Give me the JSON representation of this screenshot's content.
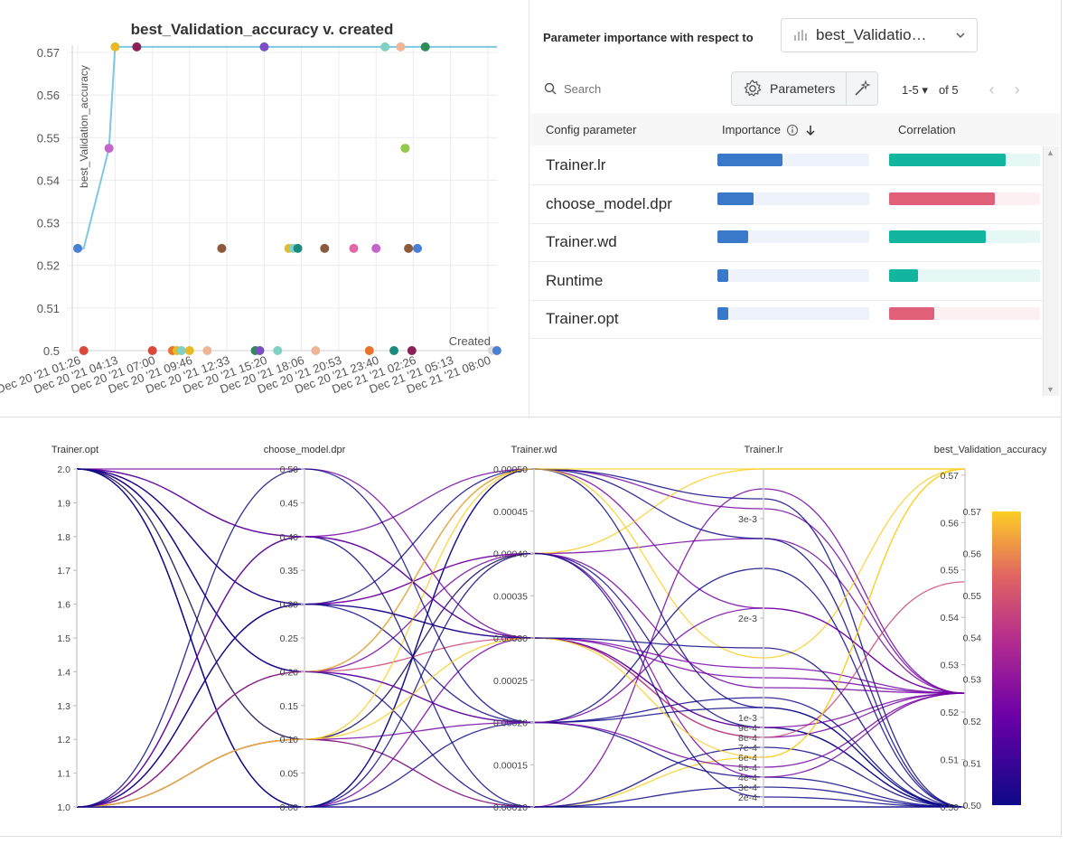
{
  "scatter": {
    "title": "best_Validation_accuracy v. created",
    "ylabel": "best_Validation_accuracy",
    "xlabel": "Created",
    "y_ticks": [
      "0.57",
      "0.56",
      "0.55",
      "0.54",
      "0.53",
      "0.52",
      "0.51",
      "0.5"
    ],
    "x_ticks": [
      "Dec 20 '21 01:26",
      "Dec 20 '21 04:13",
      "Dec 20 '21 07:00",
      "Dec 20 '21 09:46",
      "Dec 20 '21 12:33",
      "Dec 20 '21 15:20",
      "Dec 20 '21 18:06",
      "Dec 20 '21 20:53",
      "Dec 20 '21 23:40",
      "Dec 21 '21 02:26",
      "Dec 21 '21 05:13",
      "Dec 21 '21 08:00"
    ],
    "line_color": "#7ec8e3"
  },
  "importance": {
    "header": "Parameter importance with respect to",
    "metric": "best_Validatio…",
    "search_placeholder": "Search",
    "params_button": "Parameters",
    "range": "1-5 ▾",
    "of_total": "of 5",
    "columns": {
      "param": "Config parameter",
      "importance": "Importance",
      "correlation": "Correlation"
    },
    "rows": [
      {
        "name": "Trainer.lr",
        "importance": 0.43,
        "correlation": 0.77,
        "sign": "positive"
      },
      {
        "name": "choose_model.dpr",
        "importance": 0.24,
        "correlation": -0.7,
        "sign": "negative"
      },
      {
        "name": "Trainer.wd",
        "importance": 0.2,
        "correlation": 0.64,
        "sign": "positive"
      },
      {
        "name": "Runtime",
        "importance": 0.07,
        "correlation": 0.19,
        "sign": "positive"
      },
      {
        "name": "Trainer.opt",
        "importance": 0.07,
        "correlation": -0.3,
        "sign": "negative"
      }
    ],
    "colors": {
      "importance": "#3a78c9",
      "positive": "#12b59d",
      "negative": "#e0607a",
      "positive_track": "#e6f8f5",
      "negative_track": "#fdf0f2"
    }
  },
  "parallel": {
    "axes": [
      {
        "name": "Trainer.opt",
        "ticks": [
          "2.0",
          "1.9",
          "1.8",
          "1.7",
          "1.6",
          "1.5",
          "1.4",
          "1.3",
          "1.2",
          "1.1",
          "1.0"
        ]
      },
      {
        "name": "choose_model.dpr",
        "ticks": [
          "0.50",
          "0.45",
          "0.40",
          "0.35",
          "0.30",
          "0.25",
          "0.20",
          "0.15",
          "0.10",
          "0.05",
          "0.00"
        ]
      },
      {
        "name": "Trainer.wd",
        "ticks": [
          "0.00050",
          "0.00045",
          "0.00040",
          "0.00035",
          "0.00030",
          "0.00025",
          "0.00020",
          "0.00015",
          "0.00010"
        ]
      },
      {
        "name": "Trainer.lr",
        "ticks": [
          "3e-3",
          "2e-3",
          "1e-3",
          "9e-4",
          "8e-4",
          "7e-4",
          "6e-4",
          "5e-4",
          "4e-4",
          "3e-4",
          "2e-4"
        ]
      },
      {
        "name": "best_Validation_accuracy",
        "ticks": [
          "0.57",
          "0.56",
          "0.55",
          "0.54",
          "0.53",
          "0.52",
          "0.51",
          "0.50"
        ]
      }
    ],
    "colorbar_ticks": [
      "0.57",
      "0.56",
      "0.55",
      "0.54",
      "0.53",
      "0.52",
      "0.51",
      "0.50"
    ]
  },
  "chart_data": [
    {
      "type": "scatter",
      "title": "best_Validation_accuracy v. created",
      "xlabel": "Created",
      "ylabel": "best_Validation_accuracy",
      "ylim": [
        0.5,
        0.57
      ],
      "x_ticks": [
        "Dec 20 '21 01:26",
        "Dec 20 '21 04:13",
        "Dec 20 '21 07:00",
        "Dec 20 '21 09:46",
        "Dec 20 '21 12:33",
        "Dec 20 '21 15:20",
        "Dec 20 '21 18:06",
        "Dec 20 '21 20:53",
        "Dec 20 '21 23:40",
        "Dec 21 '21 02:26",
        "Dec 21 '21 05:13",
        "Dec 21 '21 08:00"
      ],
      "grid": true,
      "points": [
        {
          "x": "Dec 20 '21 01:26",
          "y": 0.524,
          "color": "#4a7fd4"
        },
        {
          "x": "Dec 20 '21 01:53",
          "y": 0.5,
          "color": "#d9483b"
        },
        {
          "x": "Dec 20 '21 03:46",
          "y": 0.5475,
          "color": "#c266c9"
        },
        {
          "x": "Dec 20 '21 04:13",
          "y": 0.5713,
          "color": "#e8b923"
        },
        {
          "x": "Dec 20 '21 05:50",
          "y": 0.5713,
          "color": "#8e1f56"
        },
        {
          "x": "Dec 20 '21 07:00",
          "y": 0.5,
          "color": "#d9483b"
        },
        {
          "x": "Dec 20 '21 08:30",
          "y": 0.5,
          "color": "#e8732a"
        },
        {
          "x": "Dec 20 '21 08:50",
          "y": 0.5,
          "color": "#e8b923"
        },
        {
          "x": "Dec 20 '21 09:10",
          "y": 0.5,
          "color": "#7fd1c4"
        },
        {
          "x": "Dec 20 '21 09:46",
          "y": 0.5,
          "color": "#e8b923"
        },
        {
          "x": "Dec 20 '21 11:05",
          "y": 0.5,
          "color": "#f0b597"
        },
        {
          "x": "Dec 20 '21 12:10",
          "y": 0.524,
          "color": "#8b5a3c"
        },
        {
          "x": "Dec 20 '21 14:40",
          "y": 0.5,
          "color": "#2e8b57"
        },
        {
          "x": "Dec 20 '21 15:00",
          "y": 0.5,
          "color": "#7c4dc4"
        },
        {
          "x": "Dec 20 '21 15:20",
          "y": 0.5713,
          "color": "#7c4dc4"
        },
        {
          "x": "Dec 20 '21 16:20",
          "y": 0.5,
          "color": "#7fd1c4"
        },
        {
          "x": "Dec 20 '21 17:10",
          "y": 0.524,
          "color": "#e8b923"
        },
        {
          "x": "Dec 20 '21 17:30",
          "y": 0.524,
          "color": "#7fd1c4"
        },
        {
          "x": "Dec 20 '21 17:50",
          "y": 0.524,
          "color": "#1a8a7a"
        },
        {
          "x": "Dec 20 '21 19:10",
          "y": 0.5,
          "color": "#f0b597"
        },
        {
          "x": "Dec 20 '21 19:50",
          "y": 0.524,
          "color": "#8b5a3c"
        },
        {
          "x": "Dec 20 '21 22:00",
          "y": 0.524,
          "color": "#e366a7"
        },
        {
          "x": "Dec 20 '21 23:10",
          "y": 0.5,
          "color": "#e8732a"
        },
        {
          "x": "Dec 20 '21 23:40",
          "y": 0.524,
          "color": "#c266c9"
        },
        {
          "x": "Dec 21 '21 00:20",
          "y": 0.5713,
          "color": "#7fd1c4"
        },
        {
          "x": "Dec 21 '21 01:00",
          "y": 0.5,
          "color": "#1a8a7a"
        },
        {
          "x": "Dec 21 '21 01:30",
          "y": 0.5713,
          "color": "#f0b597"
        },
        {
          "x": "Dec 21 '21 01:50",
          "y": 0.5475,
          "color": "#93c84a"
        },
        {
          "x": "Dec 21 '21 02:05",
          "y": 0.524,
          "color": "#8b5a3c"
        },
        {
          "x": "Dec 21 '21 02:20",
          "y": 0.5,
          "color": "#8e1f56"
        },
        {
          "x": "Dec 21 '21 02:45",
          "y": 0.524,
          "color": "#4a7fd4"
        },
        {
          "x": "Dec 21 '21 03:20",
          "y": 0.5713,
          "color": "#2e8b57"
        },
        {
          "x": "Dec 21 '21 08:20",
          "y": 0.5,
          "color": "#d9d9d9"
        },
        {
          "x": "Dec 21 '21 08:40",
          "y": 0.5,
          "color": "#4a7fd4"
        }
      ],
      "best_line": [
        {
          "x": "Dec 20 '21 01:26",
          "y": 0.524
        },
        {
          "x": "Dec 20 '21 01:53",
          "y": 0.524
        },
        {
          "x": "Dec 20 '21 03:46",
          "y": 0.5475
        },
        {
          "x": "Dec 20 '21 04:13",
          "y": 0.5713
        },
        {
          "x": "Dec 21 '21 08:40",
          "y": 0.5713
        }
      ]
    },
    {
      "type": "parallel_coordinates",
      "dimensions": [
        "Trainer.opt",
        "choose_model.dpr",
        "Trainer.wd",
        "Trainer.lr",
        "best_Validation_accuracy"
      ],
      "ranges": [
        [
          1.0,
          2.0
        ],
        [
          0.0,
          0.5
        ],
        [
          0.0001,
          0.0005
        ],
        [
          0.0001,
          0.0035
        ],
        [
          0.5,
          0.5713
        ]
      ],
      "colorscale_metric": "best_Validation_accuracy",
      "runs": [
        [
          2,
          0.3,
          0.0003,
          0.0008,
          0.524
        ],
        [
          2,
          0.3,
          0.0004,
          0.0028,
          0.524
        ],
        [
          2,
          0.4,
          0.0003,
          0.0009,
          0.5
        ],
        [
          2,
          0.4,
          0.0005,
          0.0021,
          0.524
        ],
        [
          2,
          0.2,
          0.0002,
          0.0012,
          0.5
        ],
        [
          2,
          0.2,
          0.0005,
          0.0031,
          0.524
        ],
        [
          2,
          0.1,
          0.0001,
          0.0006,
          0.5713
        ],
        [
          2,
          0.1,
          0.0004,
          0.0035,
          0.5713
        ],
        [
          2,
          0.0,
          0.0002,
          0.0004,
          0.5
        ],
        [
          2,
          0.0,
          0.0005,
          0.0032,
          0.5
        ],
        [
          2,
          0.5,
          0.0003,
          0.0015,
          0.524
        ],
        [
          2,
          0.2,
          0.0001,
          0.0001,
          0.5
        ],
        [
          2,
          0.3,
          0.0005,
          0.0011,
          0.5
        ],
        [
          2,
          0.0,
          0.0001,
          0.0007,
          0.5
        ],
        [
          2,
          0.1,
          0.0004,
          0.0009,
          0.5
        ],
        [
          1,
          0.2,
          0.0003,
          0.0008,
          0.5475
        ],
        [
          1,
          0.2,
          0.0004,
          0.0004,
          0.524
        ],
        [
          1,
          0.1,
          0.0005,
          0.0016,
          0.5713
        ],
        [
          1,
          0.1,
          0.0002,
          0.0005,
          0.524
        ],
        [
          1,
          0.0,
          0.0003,
          0.0009,
          0.524
        ],
        [
          1,
          0.0,
          0.0005,
          0.0028,
          0.5
        ],
        [
          1,
          0.3,
          0.0002,
          0.0011,
          0.5
        ],
        [
          1,
          0.3,
          0.0004,
          0.0013,
          0.524
        ],
        [
          1,
          0.4,
          0.0001,
          0.0003,
          0.5
        ],
        [
          1,
          0.4,
          0.0003,
          0.0014,
          0.524
        ],
        [
          1,
          0.5,
          0.0002,
          0.0025,
          0.5
        ],
        [
          1,
          0.2,
          0.0005,
          0.0035,
          0.5713
        ],
        [
          1,
          0.1,
          0.0001,
          0.0033,
          0.524
        ],
        [
          1,
          0.0,
          0.0004,
          0.0002,
          0.5
        ],
        [
          1,
          0.1,
          0.0003,
          0.0006,
          0.5713
        ],
        [
          1,
          0.2,
          0.0002,
          0.0021,
          0.524
        ],
        [
          1,
          0.0,
          0.0001,
          0.0001,
          0.5
        ],
        [
          1,
          0.3,
          0.0003,
          0.0017,
          0.5
        ]
      ]
    }
  ]
}
